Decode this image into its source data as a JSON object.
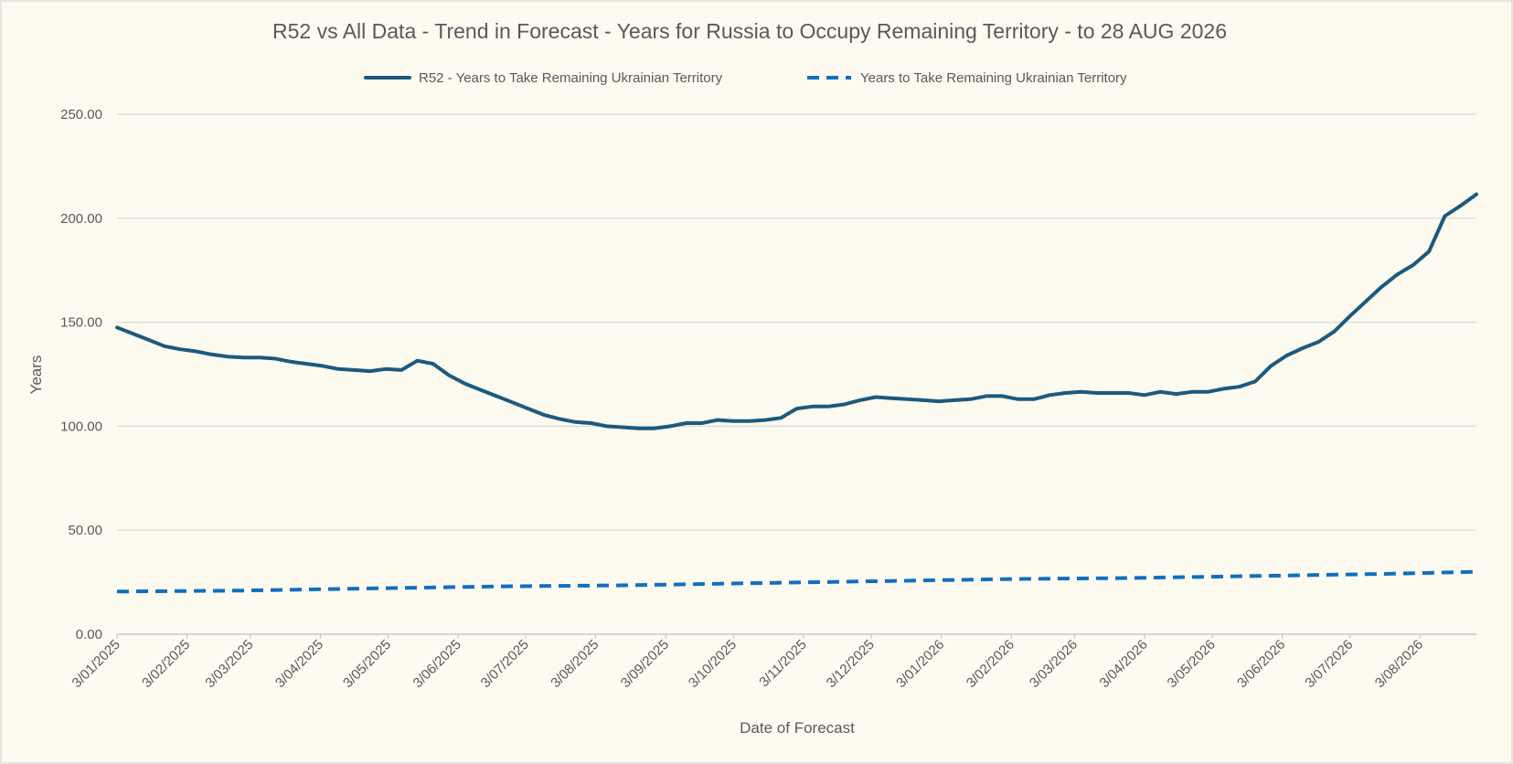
{
  "chart_data": {
    "type": "line",
    "title": "R52 vs All Data  - Trend in Forecast - Years for Russia to Occupy Remaining Territory - to 28 AUG 2026",
    "xlabel": "Date of Forecast",
    "ylabel": "Years",
    "ylim": [
      0,
      250
    ],
    "y_ticks": [
      "0.00",
      "50.00",
      "100.00",
      "150.00",
      "200.00",
      "250.00"
    ],
    "x_tick_labels": [
      "3/01/2025",
      "3/02/2025",
      "3/03/2025",
      "3/04/2025",
      "3/05/2025",
      "3/06/2025",
      "3/07/2025",
      "3/08/2025",
      "3/09/2025",
      "3/10/2025",
      "3/11/2025",
      "3/12/2025",
      "3/01/2026",
      "3/02/2026",
      "3/03/2026",
      "3/04/2026",
      "3/05/2026",
      "3/06/2026",
      "3/07/2026",
      "3/08/2026"
    ],
    "x_range": [
      "2025-01-03",
      "2026-08-28"
    ],
    "grid": true,
    "legend_position": "top",
    "series": [
      {
        "name": "R52 - Years to Take Remaining Ukrainian Territory",
        "color": "#1c5a7d",
        "style": "solid",
        "x": [
          "2025-01-03",
          "2025-01-10",
          "2025-01-17",
          "2025-01-24",
          "2025-01-31",
          "2025-02-07",
          "2025-02-14",
          "2025-02-21",
          "2025-02-28",
          "2025-03-07",
          "2025-03-14",
          "2025-03-21",
          "2025-03-28",
          "2025-04-04",
          "2025-04-11",
          "2025-04-18",
          "2025-04-25",
          "2025-05-02",
          "2025-05-09",
          "2025-05-16",
          "2025-05-23",
          "2025-05-30",
          "2025-06-06",
          "2025-06-13",
          "2025-06-20",
          "2025-06-27",
          "2025-07-04",
          "2025-07-11",
          "2025-07-18",
          "2025-07-25",
          "2025-08-01",
          "2025-08-08",
          "2025-08-15",
          "2025-08-22",
          "2025-08-29",
          "2025-09-05",
          "2025-09-12",
          "2025-09-19",
          "2025-09-26",
          "2025-10-03",
          "2025-10-10",
          "2025-10-17",
          "2025-10-24",
          "2025-10-31",
          "2025-11-07",
          "2025-11-14",
          "2025-11-21",
          "2025-11-28",
          "2025-12-05",
          "2025-12-12",
          "2025-12-19",
          "2025-12-26",
          "2026-01-02",
          "2026-01-09",
          "2026-01-16",
          "2026-01-23",
          "2026-01-30",
          "2026-02-06",
          "2026-02-13",
          "2026-02-20",
          "2026-02-27",
          "2026-03-06",
          "2026-03-13",
          "2026-03-20",
          "2026-03-27",
          "2026-04-03",
          "2026-04-10",
          "2026-04-17",
          "2026-04-24",
          "2026-05-01",
          "2026-05-08",
          "2026-05-15",
          "2026-05-22",
          "2026-05-29",
          "2026-06-05",
          "2026-06-12",
          "2026-06-19",
          "2026-06-26",
          "2026-07-03",
          "2026-07-10",
          "2026-07-17",
          "2026-07-24",
          "2026-07-31",
          "2026-08-07",
          "2026-08-14",
          "2026-08-21",
          "2026-08-28"
        ],
        "values": [
          147.5,
          144.5,
          141.5,
          138.5,
          137.0,
          136.0,
          134.5,
          133.5,
          133.0,
          133.0,
          132.5,
          131.0,
          130.0,
          129.0,
          127.5,
          127.0,
          126.5,
          127.5,
          127.0,
          131.5,
          130.0,
          124.5,
          120.5,
          117.5,
          114.5,
          111.5,
          108.5,
          105.5,
          103.5,
          102.0,
          101.5,
          100.0,
          99.5,
          99.0,
          99.0,
          100.0,
          101.5,
          101.5,
          103.0,
          102.5,
          102.5,
          103.0,
          104.0,
          108.5,
          109.5,
          109.5,
          110.5,
          112.5,
          114.0,
          113.5,
          113.0,
          112.5,
          112.0,
          112.5,
          113.0,
          114.5,
          114.5,
          113.0,
          113.0,
          115.0,
          116.0,
          116.5,
          116.0,
          116.0,
          116.0,
          115.0,
          116.5,
          115.5,
          116.5,
          116.5,
          118.0,
          119.0,
          121.5,
          129.0,
          134.0,
          137.5,
          140.5,
          145.5,
          153.0,
          160.0,
          167.0,
          173.0,
          177.5,
          184.0,
          201.0,
          206.0,
          211.5
        ]
      },
      {
        "name": "Years to Take Remaining Ukrainian Territory",
        "color": "#0f6fc1",
        "style": "dashed",
        "x": [
          "2025-01-03",
          "2025-02-28",
          "2025-04-25",
          "2025-06-20",
          "2025-08-15",
          "2025-10-10",
          "2025-12-05",
          "2026-01-30",
          "2026-03-27",
          "2026-05-22",
          "2026-07-17",
          "2026-08-28"
        ],
        "values": [
          20.5,
          21.0,
          22.0,
          23.0,
          23.5,
          24.5,
          25.5,
          26.5,
          27.0,
          28.0,
          29.0,
          30.0
        ]
      }
    ]
  }
}
